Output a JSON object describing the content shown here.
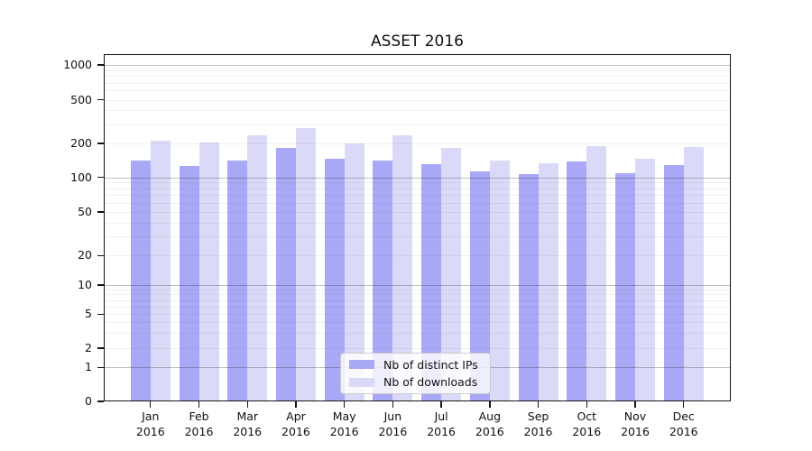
{
  "chart_data": {
    "type": "bar",
    "title": "ASSET 2016",
    "categories": [
      "Jan",
      "Feb",
      "Mar",
      "Apr",
      "May",
      "Jun",
      "Jul",
      "Aug",
      "Sep",
      "Oct",
      "Nov",
      "Dec"
    ],
    "year_label": "2016",
    "series": [
      {
        "key": "distinct-ips",
        "name": "Nb of distinct IPs",
        "color": "#a8a8f6",
        "values": [
          140,
          125,
          141,
          181,
          146,
          140,
          130,
          112,
          106,
          137,
          108,
          128
        ]
      },
      {
        "key": "downloads",
        "name": "Nb of downloads",
        "color": "#dadaf8",
        "values": [
          212,
          203,
          238,
          277,
          201,
          236,
          183,
          141,
          134,
          188,
          146,
          185
        ]
      }
    ],
    "yticks": [
      "0",
      "1",
      "2",
      "5",
      "10",
      "20",
      "50",
      "100",
      "200",
      "500",
      "1000"
    ],
    "yscale": "symlog",
    "ylim": [
      0,
      1265
    ],
    "xlabel": "",
    "ylabel": "",
    "grid": true,
    "legend_position": "lower center"
  }
}
